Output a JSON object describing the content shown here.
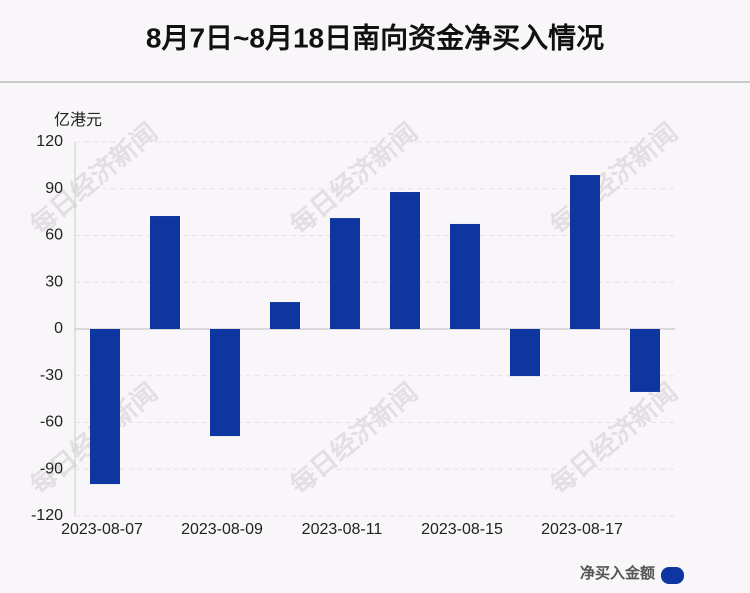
{
  "chart_data": {
    "type": "bar",
    "title": "8月7日~8月18日南向资金净买入情况",
    "y_label": "亿港元",
    "watermark": "每日经济新闻",
    "categories": [
      "2023-08-07",
      null,
      "2023-08-09",
      null,
      "2023-08-11",
      null,
      "2023-08-15",
      null,
      "2023-08-17",
      null
    ],
    "series": [
      {
        "name": "净买入金额",
        "color": "#0d36a0",
        "values": [
          -99.5,
          72.5,
          -68.7,
          17.3,
          71.2,
          87.9,
          67.4,
          -30.2,
          98.8,
          -40.4
        ]
      }
    ],
    "ylim": [
      -120,
      120
    ],
    "yticks": [
      -120,
      -90,
      -60,
      -30,
      0,
      30,
      60,
      90,
      120
    ],
    "grid": true
  }
}
